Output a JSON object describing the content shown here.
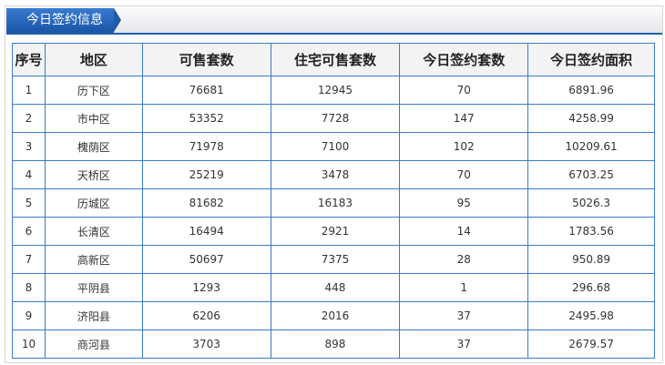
{
  "panel": {
    "title": "今日签约信息"
  },
  "table": {
    "headers": [
      "序号",
      "地区",
      "可售套数",
      "住宅可售套数",
      "今日签约套数",
      "今日签约面积"
    ],
    "rows": [
      [
        "1",
        "历下区",
        "76681",
        "12945",
        "70",
        "6891.96"
      ],
      [
        "2",
        "市中区",
        "53352",
        "7728",
        "147",
        "4258.99"
      ],
      [
        "3",
        "槐荫区",
        "71978",
        "7100",
        "102",
        "10209.61"
      ],
      [
        "4",
        "天桥区",
        "25219",
        "3478",
        "70",
        "6703.25"
      ],
      [
        "5",
        "历城区",
        "81682",
        "16183",
        "95",
        "5026.3"
      ],
      [
        "6",
        "长清区",
        "16494",
        "2921",
        "14",
        "1783.56"
      ],
      [
        "7",
        "高新区",
        "50697",
        "7375",
        "28",
        "950.89"
      ],
      [
        "8",
        "平阴县",
        "1293",
        "448",
        "1",
        "296.68"
      ],
      [
        "9",
        "济阳县",
        "6206",
        "2016",
        "37",
        "2495.98"
      ],
      [
        "10",
        "商河县",
        "3703",
        "898",
        "37",
        "2679.57"
      ]
    ]
  }
}
